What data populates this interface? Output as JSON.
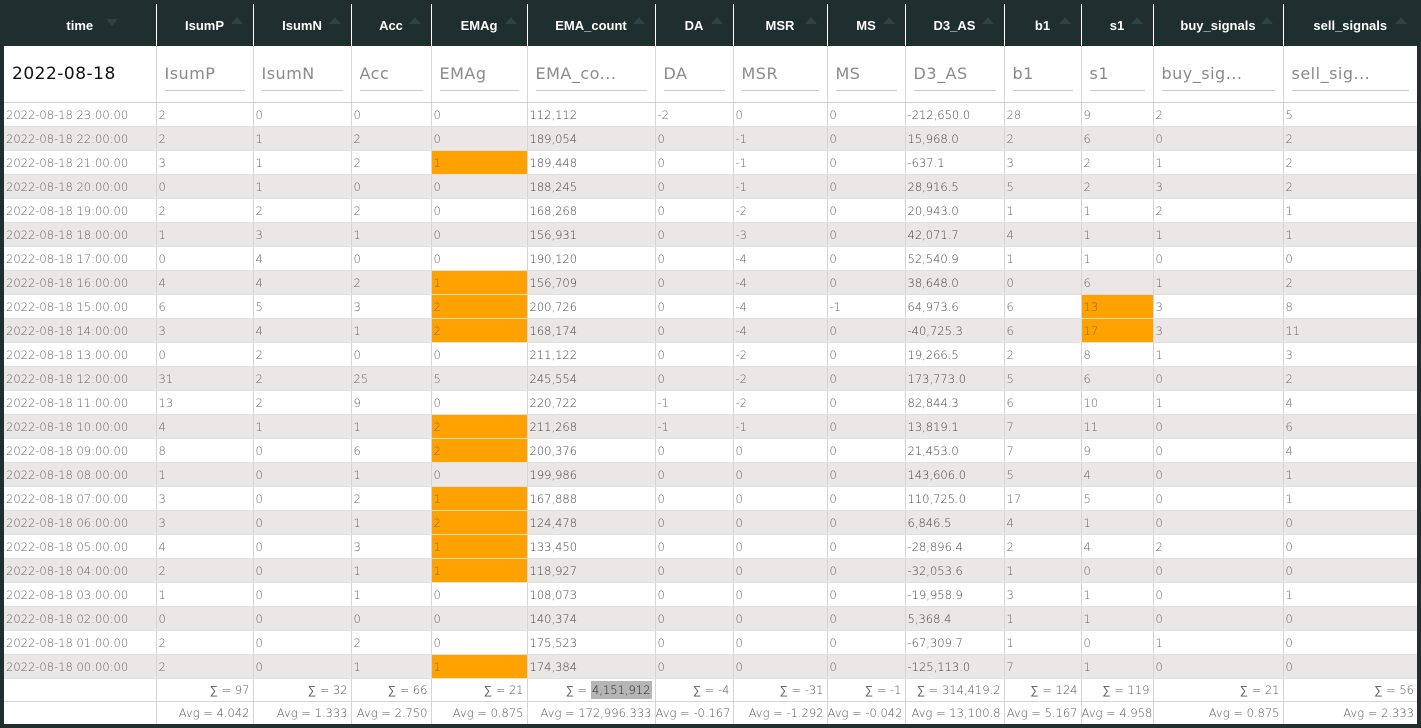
{
  "columns": [
    "time",
    "IsumP",
    "IsumN",
    "Acc",
    "EMAg",
    "EMA_count",
    "DA",
    "MSR",
    "MS",
    "D3_AS",
    "b1",
    "s1",
    "buy_signals",
    "sell_signals"
  ],
  "filters": [
    "2022-08-18",
    "IsumP",
    "IsumN",
    "Acc",
    "EMAg",
    "EMA_co...",
    "DA",
    "MSR",
    "MS",
    "D3_AS",
    "b1",
    "s1",
    "buy_sig...",
    "sell_sig..."
  ],
  "highlight_color": "#ffa200",
  "rows": [
    [
      "2022-08-18 23:00:00",
      "2",
      "0",
      "0",
      "0",
      "112,112",
      "-2",
      "0",
      "0",
      "-212,650.0",
      "28",
      "9",
      "2",
      "5"
    ],
    [
      "2022-08-18 22:00:00",
      "2",
      "1",
      "2",
      "0",
      "189,054",
      "0",
      "-1",
      "0",
      "15,968.0",
      "2",
      "6",
      "0",
      "2"
    ],
    [
      "2022-08-18 21:00:00",
      "3",
      "1",
      "2",
      "1",
      "189,448",
      "0",
      "-1",
      "0",
      "-637.1",
      "3",
      "2",
      "1",
      "2"
    ],
    [
      "2022-08-18 20:00:00",
      "0",
      "1",
      "0",
      "0",
      "188,245",
      "0",
      "-1",
      "0",
      "28,916.5",
      "5",
      "2",
      "3",
      "2"
    ],
    [
      "2022-08-18 19:00:00",
      "2",
      "2",
      "2",
      "0",
      "168,268",
      "0",
      "-2",
      "0",
      "20,943.0",
      "1",
      "1",
      "2",
      "1"
    ],
    [
      "2022-08-18 18:00:00",
      "1",
      "3",
      "1",
      "0",
      "156,931",
      "0",
      "-3",
      "0",
      "42,071.7",
      "4",
      "1",
      "1",
      "1"
    ],
    [
      "2022-08-18 17:00:00",
      "0",
      "4",
      "0",
      "0",
      "190,120",
      "0",
      "-4",
      "0",
      "52,540.9",
      "1",
      "1",
      "0",
      "0"
    ],
    [
      "2022-08-18 16:00:00",
      "4",
      "4",
      "2",
      "1",
      "156,709",
      "0",
      "-4",
      "0",
      "38,648.0",
      "0",
      "6",
      "1",
      "2"
    ],
    [
      "2022-08-18 15:00:00",
      "6",
      "5",
      "3",
      "2",
      "200,726",
      "0",
      "-4",
      "-1",
      "64,973.6",
      "6",
      "13",
      "3",
      "8"
    ],
    [
      "2022-08-18 14:00:00",
      "3",
      "4",
      "1",
      "2",
      "168,174",
      "0",
      "-4",
      "0",
      "-40,725.3",
      "6",
      "17",
      "3",
      "11"
    ],
    [
      "2022-08-18 13:00:00",
      "0",
      "2",
      "0",
      "0",
      "211,122",
      "0",
      "-2",
      "0",
      "19,266.5",
      "2",
      "8",
      "1",
      "3"
    ],
    [
      "2022-08-18 12:00:00",
      "31",
      "2",
      "25",
      "5",
      "245,554",
      "0",
      "-2",
      "0",
      "173,773.0",
      "5",
      "6",
      "0",
      "2"
    ],
    [
      "2022-08-18 11:00:00",
      "13",
      "2",
      "9",
      "0",
      "220,722",
      "-1",
      "-2",
      "0",
      "82,844.3",
      "6",
      "10",
      "1",
      "4"
    ],
    [
      "2022-08-18 10:00:00",
      "4",
      "1",
      "1",
      "2",
      "211,268",
      "-1",
      "-1",
      "0",
      "13,819.1",
      "7",
      "11",
      "0",
      "6"
    ],
    [
      "2022-08-18 09:00:00",
      "8",
      "0",
      "6",
      "2",
      "200,376",
      "0",
      "0",
      "0",
      "21,453.0",
      "7",
      "9",
      "0",
      "4"
    ],
    [
      "2022-08-18 08:00:00",
      "1",
      "0",
      "1",
      "0",
      "199,986",
      "0",
      "0",
      "0",
      "143,606.0",
      "5",
      "4",
      "0",
      "1"
    ],
    [
      "2022-08-18 07:00:00",
      "3",
      "0",
      "2",
      "1",
      "167,888",
      "0",
      "0",
      "0",
      "110,725.0",
      "17",
      "5",
      "0",
      "1"
    ],
    [
      "2022-08-18 06:00:00",
      "3",
      "0",
      "1",
      "2",
      "124,478",
      "0",
      "0",
      "0",
      "6,846.5",
      "4",
      "1",
      "0",
      "0"
    ],
    [
      "2022-08-18 05:00:00",
      "4",
      "0",
      "3",
      "1",
      "133,450",
      "0",
      "0",
      "0",
      "-28,896.4",
      "2",
      "4",
      "2",
      "0"
    ],
    [
      "2022-08-18 04:00:00",
      "2",
      "0",
      "1",
      "1",
      "118,927",
      "0",
      "0",
      "0",
      "-32,053.6",
      "1",
      "0",
      "0",
      "0"
    ],
    [
      "2022-08-18 03:00:00",
      "1",
      "0",
      "1",
      "0",
      "108,073",
      "0",
      "0",
      "0",
      "-19,958.9",
      "3",
      "1",
      "0",
      "1"
    ],
    [
      "2022-08-18 02:00:00",
      "0",
      "0",
      "0",
      "0",
      "140,374",
      "0",
      "0",
      "0",
      "5,368.4",
      "1",
      "1",
      "0",
      "0"
    ],
    [
      "2022-08-18 01:00:00",
      "2",
      "0",
      "2",
      "0",
      "175,523",
      "0",
      "0",
      "0",
      "-67,309.7",
      "1",
      "0",
      "1",
      "0"
    ],
    [
      "2022-08-18 00:00:00",
      "2",
      "0",
      "1",
      "1",
      "174,384",
      "0",
      "0",
      "0",
      "-125,113.0",
      "7",
      "1",
      "0",
      "0"
    ]
  ],
  "highlighted_cells": [
    [
      2,
      4
    ],
    [
      7,
      4
    ],
    [
      8,
      4
    ],
    [
      9,
      4
    ],
    [
      13,
      4
    ],
    [
      14,
      4
    ],
    [
      16,
      4
    ],
    [
      17,
      4
    ],
    [
      18,
      4
    ],
    [
      19,
      4
    ],
    [
      23,
      4
    ],
    [
      8,
      11
    ],
    [
      9,
      11
    ]
  ],
  "sums": [
    "",
    "∑ = 97",
    "∑ = 32",
    "∑ = 66",
    "∑ = 21",
    "∑ = 4,151,912",
    "∑ = -4",
    "∑ = -31",
    "∑ = -1",
    "∑ = 314,419.2",
    "∑ = 124",
    "∑ = 119",
    "∑ = 21",
    "∑ = 56"
  ],
  "sum_selected_prefix": "∑ = ",
  "sum_selected_value": "4,151,912",
  "avgs": [
    "",
    "Avg = 4.042",
    "Avg = 1.333",
    "Avg = 2.750",
    "Avg = 0.875",
    "Avg = 172,996.333",
    "Avg = -0.167",
    "Avg = -1.292",
    "Avg = -0.042",
    "Avg = 13,100.8",
    "Avg = 5.167",
    "Avg = 4.958",
    "Avg = 0.875",
    "Avg = 2.333"
  ]
}
